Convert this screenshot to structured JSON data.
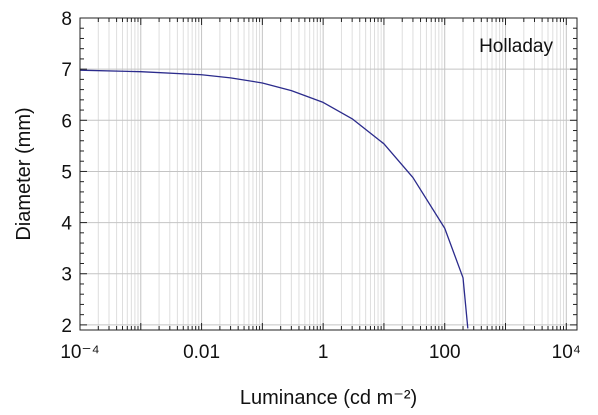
{
  "chart_data": {
    "type": "line",
    "title": "",
    "xlabel": "Luminance (cd m⁻²)",
    "ylabel": "Diameter (mm)",
    "xscale": "log",
    "xlim": [
      0.0001,
      15000
    ],
    "ylim": [
      1.9,
      8
    ],
    "grid": true,
    "legend": "none",
    "annotation": "Holladay",
    "x_ticks": [
      {
        "value": 0.0001,
        "label": "10⁻⁴"
      },
      {
        "value": 0.01,
        "label": "0.01"
      },
      {
        "value": 1,
        "label": "1"
      },
      {
        "value": 100,
        "label": "100"
      },
      {
        "value": 10000,
        "label": "10⁴"
      }
    ],
    "y_ticks": [
      {
        "value": 2,
        "label": "2"
      },
      {
        "value": 3,
        "label": "3"
      },
      {
        "value": 4,
        "label": "4"
      },
      {
        "value": 5,
        "label": "5"
      },
      {
        "value": 6,
        "label": "6"
      },
      {
        "value": 7,
        "label": "7"
      },
      {
        "value": 8,
        "label": "8"
      }
    ],
    "series": [
      {
        "color": "#2b2b8c",
        "x": [
          0.0001,
          0.001,
          0.01,
          0.03,
          0.1,
          0.3,
          1,
          3,
          10,
          30,
          100,
          200,
          240
        ],
        "y": [
          6.98,
          6.95,
          6.89,
          6.83,
          6.73,
          6.58,
          6.35,
          6.03,
          5.54,
          4.88,
          3.89,
          2.92,
          1.93
        ]
      }
    ]
  }
}
